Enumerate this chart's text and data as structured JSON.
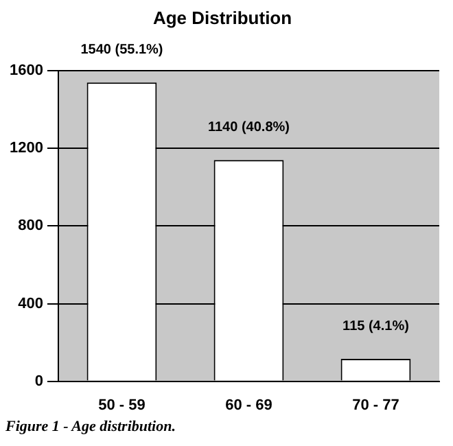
{
  "chart_data": {
    "type": "bar",
    "title": "Age Distribution",
    "categories": [
      "50 - 59",
      "60 - 69",
      "70 - 77"
    ],
    "values": [
      1540,
      1140,
      115
    ],
    "color": "#ffffff",
    "value_labels": [
      "1540 (55.1%)",
      "1140 (40.8%)",
      "115 (4.1%)"
    ],
    "ylim": [
      0,
      1600
    ],
    "yticks": [
      0,
      400,
      800,
      1200,
      1600
    ],
    "grid": "y",
    "annotations": [
      "Figure 1 - Age distribution."
    ]
  }
}
